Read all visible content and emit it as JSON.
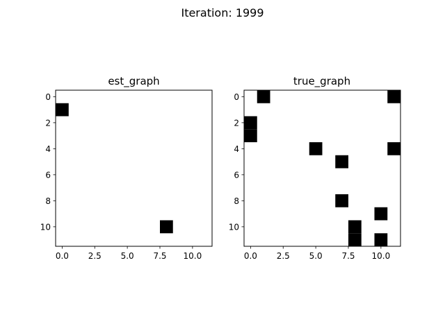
{
  "figure": {
    "suptitle": "Iteration: 1999",
    "background": "#ffffff"
  },
  "chart_data": [
    {
      "type": "heatmap",
      "title": "est_graph",
      "xlabel": "",
      "ylabel": "",
      "size": 12,
      "xlim": [
        -0.5,
        11.5
      ],
      "ylim": [
        11.5,
        -0.5
      ],
      "xticks": [
        0.0,
        2.5,
        5.0,
        7.5,
        10.0
      ],
      "xtick_labels": [
        "0.0",
        "2.5",
        "5.0",
        "7.5",
        "10.0"
      ],
      "yticks": [
        0,
        2,
        4,
        6,
        8,
        10
      ],
      "ytick_labels": [
        "0",
        "2",
        "4",
        "6",
        "8",
        "10"
      ],
      "cells": [
        [
          1,
          0
        ],
        [
          10,
          8
        ]
      ],
      "on_color": "#000000",
      "off_color": "#ffffff",
      "grid": false
    },
    {
      "type": "heatmap",
      "title": "true_graph",
      "xlabel": "",
      "ylabel": "",
      "size": 12,
      "xlim": [
        -0.5,
        11.5
      ],
      "ylim": [
        11.5,
        -0.5
      ],
      "xticks": [
        0.0,
        2.5,
        5.0,
        7.5,
        10.0
      ],
      "xtick_labels": [
        "0.0",
        "2.5",
        "5.0",
        "7.5",
        "10.0"
      ],
      "yticks": [
        0,
        2,
        4,
        6,
        8,
        10
      ],
      "ytick_labels": [
        "0",
        "2",
        "4",
        "6",
        "8",
        "10"
      ],
      "cells": [
        [
          0,
          1
        ],
        [
          0,
          11
        ],
        [
          2,
          0
        ],
        [
          3,
          0
        ],
        [
          4,
          5
        ],
        [
          4,
          11
        ],
        [
          5,
          7
        ],
        [
          8,
          7
        ],
        [
          9,
          10
        ],
        [
          10,
          8
        ],
        [
          11,
          8
        ],
        [
          11,
          10
        ]
      ],
      "on_color": "#000000",
      "off_color": "#ffffff",
      "grid": false
    }
  ]
}
